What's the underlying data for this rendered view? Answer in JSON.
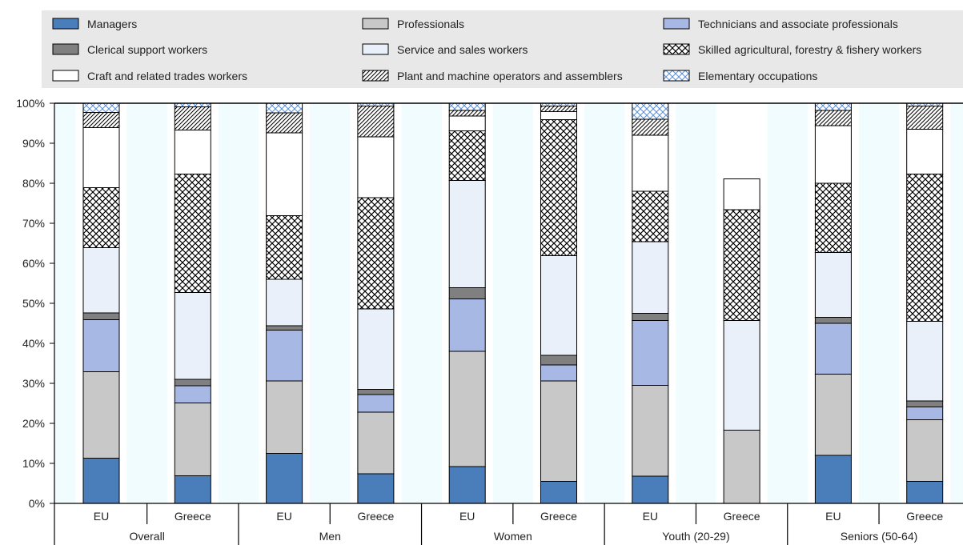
{
  "chart_data": {
    "type": "bar",
    "stacked": true,
    "groups": [
      "Overall",
      "Men",
      "Women",
      "Youth (20-29)",
      "Seniors (50-64)"
    ],
    "categories": [
      "EU",
      "Greece"
    ],
    "x": [
      "EU",
      "Greece",
      "EU",
      "Greece",
      "EU",
      "Greece",
      "EU",
      "Greece",
      "EU",
      "Greece"
    ],
    "series": [
      {
        "name": "Managers",
        "color": "#4a7ebb",
        "pattern": "solid",
        "values": [
          11.3,
          6.9,
          12.5,
          7.4,
          9.2,
          5.5,
          6.8,
          0,
          12.0,
          5.5
        ]
      },
      {
        "name": "Professionals",
        "color": "#c8c8c8",
        "pattern": "solid",
        "values": [
          21.6,
          18.2,
          18.1,
          15.4,
          28.8,
          25.1,
          22.7,
          18.3,
          20.3,
          15.4
        ]
      },
      {
        "name": "Technicians and associate professionals",
        "color": "#a6b8e3",
        "pattern": "solid",
        "values": [
          13.0,
          4.3,
          12.7,
          4.4,
          13.1,
          4.0,
          16.2,
          0,
          12.7,
          3.2
        ]
      },
      {
        "name": "Clerical support workers",
        "color": "#808080",
        "pattern": "solid",
        "values": [
          1.7,
          1.6,
          1.1,
          1.3,
          2.8,
          2.4,
          1.8,
          0,
          1.5,
          1.5
        ]
      },
      {
        "name": "Service and sales workers",
        "color": "#eaf0fa",
        "pattern": "solid",
        "values": [
          16.3,
          21.7,
          11.6,
          20.1,
          26.8,
          24.9,
          17.9,
          27.4,
          16.2,
          19.9
        ]
      },
      {
        "name": "Skilled agricultural, forestry & fishery workers",
        "color": "#ffffff",
        "pattern": "crosshatch",
        "values": [
          15.0,
          29.6,
          15.9,
          27.8,
          12.4,
          34.0,
          12.6,
          27.7,
          17.3,
          36.8
        ]
      },
      {
        "name": "Craft and related trades workers",
        "color": "#ffffff",
        "pattern": "solid",
        "values": [
          15.0,
          11.0,
          20.7,
          15.2,
          3.7,
          2.0,
          14.0,
          7.7,
          14.4,
          11.2
        ]
      },
      {
        "name": "Plant and machine operators and assemblers",
        "color": "#ffffff",
        "pattern": "diagonal",
        "values": [
          3.8,
          5.8,
          5.0,
          7.7,
          1.4,
          1.4,
          4.0,
          0,
          3.8,
          5.8
        ]
      },
      {
        "name": "Elementary occupations",
        "color": "#ffffff",
        "pattern": "bluecross",
        "values": [
          2.3,
          0.9,
          2.4,
          0.7,
          1.8,
          0.7,
          4.0,
          0,
          1.8,
          0.7
        ]
      }
    ],
    "yticks": [
      "0%",
      "10%",
      "20%",
      "30%",
      "40%",
      "50%",
      "60%",
      "70%",
      "80%",
      "90%",
      "100%"
    ],
    "ylim": [
      0,
      100
    ],
    "legend_position": "top",
    "plot_background": "#f0fcfe",
    "bar_band_color": "#ffffff"
  }
}
